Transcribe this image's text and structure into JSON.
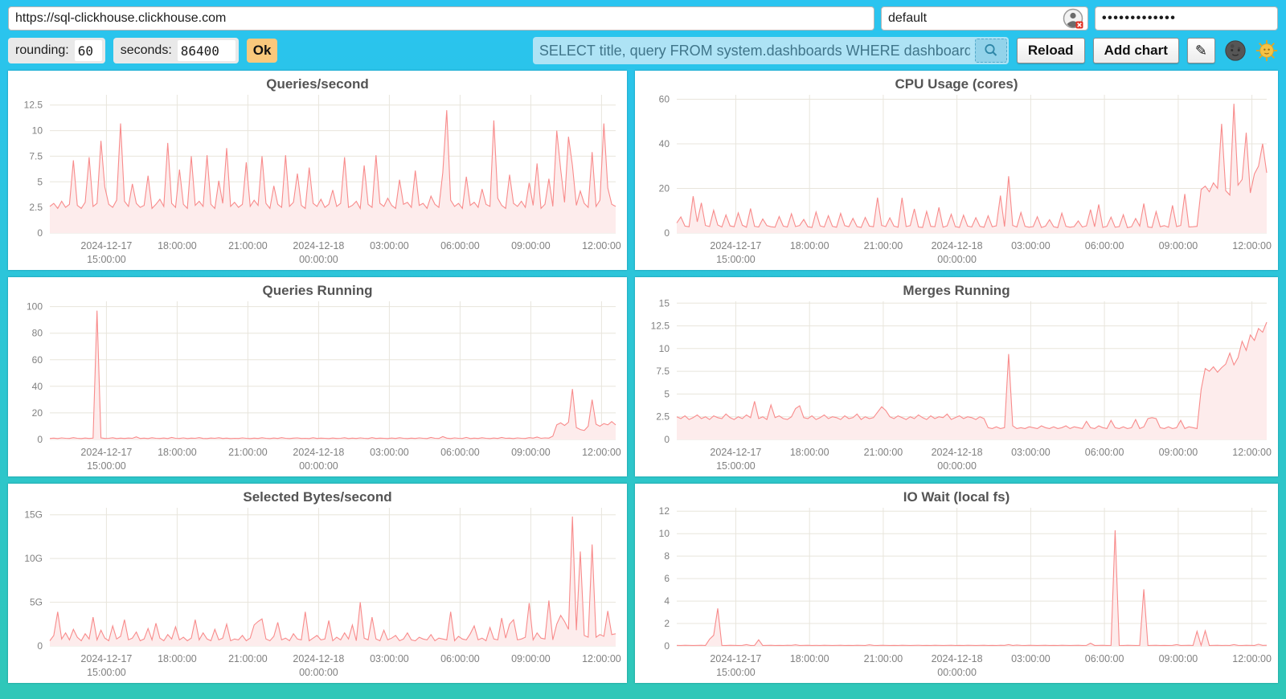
{
  "topbar": {
    "url_input": {
      "value": "https://sql-clickhouse.clickhouse.com"
    },
    "user_input": {
      "value": "default"
    },
    "password_input": {
      "value": "•••••••••••••"
    },
    "user_icon": "people-silhouette-circle-with-red-x-badge"
  },
  "controls": {
    "rounding_label": "rounding:",
    "rounding_value": "60",
    "seconds_label": "seconds:",
    "seconds_value": "86400",
    "ok_button": "Ok",
    "query_input": {
      "value": "SELECT title, query FROM system.dashboards WHERE dashboard = '"
    },
    "search_icon": "magnifier",
    "reload_button": "Reload",
    "add_chart_button": "Add chart",
    "edit_icon": "✎",
    "theme_dark_icon": "moon-face",
    "theme_light_icon": "sun-face"
  },
  "colors": {
    "background_top": "#2ac4f0",
    "background_bottom": "#2fc7b8",
    "accent_line": "#f88b8b",
    "accent_fill": "#fdecec",
    "grid": "#e8e5dc",
    "tick_text": "#808080",
    "title_text": "#545454",
    "ok_button_bg": "#f9c87c",
    "query_bg": "#aee3f5",
    "query_text": "#40758a"
  },
  "chart_data": [
    {
      "type": "line",
      "title": "Queries/second",
      "ylim": [
        0,
        13.5
      ],
      "y_ticks": [
        0,
        2.5,
        5,
        7.5,
        10,
        12.5
      ],
      "y_unit": "",
      "x_ticks": [
        {
          "frac": 0.1,
          "lines": [
            "2024-12-17",
            "15:00:00"
          ]
        },
        {
          "frac": 0.225,
          "lines": [
            "18:00:00"
          ]
        },
        {
          "frac": 0.35,
          "lines": [
            "21:00:00"
          ]
        },
        {
          "frac": 0.475,
          "lines": [
            "2024-12-18",
            "00:00:00"
          ]
        },
        {
          "frac": 0.6,
          "lines": [
            "03:00:00"
          ]
        },
        {
          "frac": 0.725,
          "lines": [
            "06:00:00"
          ]
        },
        {
          "frac": 0.85,
          "lines": [
            "09:00:00"
          ]
        },
        {
          "frac": 0.975,
          "lines": [
            "12:00:00"
          ]
        }
      ],
      "values": [
        2.6,
        2.9,
        2.4,
        3.1,
        2.5,
        2.8,
        7.1,
        2.7,
        2.4,
        3.0,
        7.4,
        2.6,
        2.9,
        9.0,
        4.5,
        2.8,
        2.5,
        3.2,
        10.7,
        3.1,
        2.6,
        4.8,
        2.9,
        2.5,
        2.7,
        5.6,
        2.4,
        2.8,
        3.3,
        2.6,
        8.8,
        2.9,
        2.5,
        6.2,
        2.8,
        2.4,
        7.5,
        2.7,
        3.1,
        2.6,
        7.6,
        2.8,
        2.4,
        5.1,
        2.9,
        8.3,
        2.6,
        3.0,
        2.5,
        2.8,
        6.9,
        2.6,
        3.2,
        2.7,
        7.5,
        2.9,
        2.4,
        4.6,
        2.8,
        2.5,
        7.6,
        2.6,
        3.0,
        5.8,
        2.7,
        2.4,
        6.4,
        2.9,
        2.6,
        3.3,
        2.5,
        2.8,
        4.2,
        2.6,
        2.9,
        7.4,
        2.5,
        2.7,
        3.1,
        2.4,
        6.6,
        2.8,
        2.5,
        7.6,
        2.9,
        2.6,
        3.4,
        2.7,
        2.4,
        5.2,
        2.8,
        3.0,
        2.5,
        6.1,
        2.7,
        2.9,
        2.4,
        3.6,
        2.8,
        2.5,
        5.9,
        12.0,
        3.2,
        2.6,
        2.9,
        2.4,
        5.5,
        2.7,
        3.0,
        2.5,
        4.3,
        2.8,
        2.6,
        11.0,
        3.4,
        2.7,
        2.4,
        5.7,
        2.9,
        2.6,
        3.1,
        2.5,
        4.9,
        2.7,
        6.8,
        2.4,
        2.8,
        5.3,
        2.6,
        10.0,
        6.2,
        3.0,
        9.4,
        6.6,
        2.7,
        4.1,
        2.9,
        2.5,
        7.9,
        2.6,
        3.2,
        10.7,
        4.4,
        2.8,
        2.6
      ]
    },
    {
      "type": "line",
      "title": "CPU Usage (cores)",
      "ylim": [
        0,
        62
      ],
      "y_ticks": [
        0,
        20,
        40,
        60
      ],
      "y_unit": "",
      "x_ticks": [
        {
          "frac": 0.1,
          "lines": [
            "2024-12-17",
            "15:00:00"
          ]
        },
        {
          "frac": 0.225,
          "lines": [
            "18:00:00"
          ]
        },
        {
          "frac": 0.35,
          "lines": [
            "21:00:00"
          ]
        },
        {
          "frac": 0.475,
          "lines": [
            "2024-12-18",
            "00:00:00"
          ]
        },
        {
          "frac": 0.6,
          "lines": [
            "03:00:00"
          ]
        },
        {
          "frac": 0.725,
          "lines": [
            "06:00:00"
          ]
        },
        {
          "frac": 0.85,
          "lines": [
            "09:00:00"
          ]
        },
        {
          "frac": 0.975,
          "lines": [
            "12:00:00"
          ]
        }
      ],
      "values": [
        4.5,
        7.2,
        3.1,
        2.8,
        16.5,
        5.0,
        13.5,
        3.4,
        2.9,
        10.2,
        3.6,
        2.7,
        8.1,
        3.2,
        2.8,
        9.0,
        3.5,
        2.6,
        11.0,
        3.0,
        2.7,
        6.3,
        3.3,
        2.8,
        2.6,
        7.4,
        3.1,
        2.7,
        8.6,
        2.9,
        3.4,
        6.1,
        2.8,
        2.5,
        9.4,
        3.2,
        2.7,
        7.8,
        3.0,
        2.6,
        8.8,
        3.3,
        2.8,
        6.6,
        2.9,
        2.5,
        7.0,
        3.1,
        2.8,
        15.9,
        3.4,
        2.9,
        6.8,
        3.1,
        2.6,
        15.8,
        2.9,
        3.3,
        10.8,
        2.7,
        2.5,
        9.7,
        3.0,
        2.8,
        11.5,
        2.6,
        3.2,
        8.4,
        2.9,
        2.5,
        8.0,
        3.1,
        2.7,
        6.9,
        3.0,
        2.6,
        7.7,
        2.8,
        3.2,
        16.8,
        2.9,
        25.5,
        3.4,
        2.7,
        9.2,
        3.0,
        2.6,
        2.9,
        7.3,
        2.5,
        3.1,
        6.0,
        2.8,
        2.4,
        8.9,
        3.0,
        2.6,
        2.9,
        5.4,
        2.7,
        3.2,
        10.5,
        2.8,
        12.8,
        2.5,
        3.0,
        7.1,
        2.6,
        2.9,
        8.2,
        2.4,
        2.8,
        6.5,
        3.1,
        13.2,
        2.7,
        2.5,
        9.6,
        2.8,
        3.3,
        2.6,
        12.4,
        2.9,
        3.4,
        17.5,
        2.7,
        2.8,
        3.0,
        19.5,
        21.0,
        18.5,
        22.5,
        20.0,
        49.0,
        19.0,
        17.0,
        58.0,
        21.5,
        24.0,
        45.0,
        18.0,
        26.5,
        30.0,
        40.0,
        27.0
      ]
    },
    {
      "type": "line",
      "title": "Queries Running",
      "ylim": [
        0,
        104
      ],
      "y_ticks": [
        0,
        20,
        40,
        60,
        80,
        100
      ],
      "y_unit": "",
      "x_ticks": [
        {
          "frac": 0.1,
          "lines": [
            "2024-12-17",
            "15:00:00"
          ]
        },
        {
          "frac": 0.225,
          "lines": [
            "18:00:00"
          ]
        },
        {
          "frac": 0.35,
          "lines": [
            "21:00:00"
          ]
        },
        {
          "frac": 0.475,
          "lines": [
            "2024-12-18",
            "00:00:00"
          ]
        },
        {
          "frac": 0.6,
          "lines": [
            "03:00:00"
          ]
        },
        {
          "frac": 0.725,
          "lines": [
            "06:00:00"
          ]
        },
        {
          "frac": 0.85,
          "lines": [
            "09:00:00"
          ]
        },
        {
          "frac": 0.975,
          "lines": [
            "12:00:00"
          ]
        }
      ],
      "values": [
        0.8,
        1.0,
        0.7,
        1.2,
        0.9,
        0.8,
        1.4,
        0.9,
        0.7,
        1.1,
        0.8,
        1.0,
        97.0,
        1.2,
        0.8,
        0.9,
        1.3,
        0.7,
        1.0,
        0.8,
        1.1,
        0.9,
        2.0,
        0.8,
        1.0,
        0.7,
        1.3,
        0.9,
        0.8,
        1.1,
        0.7,
        1.5,
        0.9,
        0.8,
        1.2,
        0.7,
        1.0,
        0.9,
        1.4,
        0.8,
        0.7,
        1.1,
        0.9,
        1.3,
        0.8,
        1.0,
        0.7,
        0.9,
        0.8,
        1.2,
        0.9,
        0.7,
        1.0,
        0.8,
        1.3,
        0.9,
        0.7,
        1.1,
        0.8,
        1.4,
        0.9,
        0.7,
        1.0,
        1.2,
        0.8,
        0.9,
        0.7,
        1.3,
        0.8,
        1.0,
        0.9,
        0.7,
        1.1,
        0.8,
        0.9,
        1.3,
        0.7,
        1.0,
        0.8,
        1.2,
        0.9,
        0.7,
        1.4,
        0.8,
        1.0,
        0.9,
        0.7,
        1.1,
        0.8,
        1.3,
        0.9,
        0.7,
        1.0,
        0.8,
        1.2,
        0.9,
        0.7,
        1.5,
        0.9,
        0.8,
        2.2,
        1.0,
        0.7,
        1.2,
        0.9,
        0.8,
        1.6,
        0.7,
        1.0,
        0.8,
        1.3,
        0.9,
        0.7,
        1.1,
        0.8,
        1.5,
        0.9,
        1.0,
        0.7,
        1.2,
        0.9,
        0.8,
        1.4,
        1.0,
        1.8,
        0.9,
        1.2,
        1.0,
        2.5,
        11.0,
        12.5,
        10.5,
        13.0,
        38.0,
        9.0,
        7.5,
        6.8,
        10.0,
        30.0,
        11.5,
        10.0,
        12.0,
        11.0,
        13.5,
        11.0
      ]
    },
    {
      "type": "line",
      "title": "Merges Running",
      "ylim": [
        0,
        15.2
      ],
      "y_ticks": [
        0,
        2.5,
        5,
        7.5,
        10,
        12.5,
        15
      ],
      "y_unit": "",
      "x_ticks": [
        {
          "frac": 0.1,
          "lines": [
            "2024-12-17",
            "15:00:00"
          ]
        },
        {
          "frac": 0.225,
          "lines": [
            "18:00:00"
          ]
        },
        {
          "frac": 0.35,
          "lines": [
            "21:00:00"
          ]
        },
        {
          "frac": 0.475,
          "lines": [
            "2024-12-18",
            "00:00:00"
          ]
        },
        {
          "frac": 0.6,
          "lines": [
            "03:00:00"
          ]
        },
        {
          "frac": 0.725,
          "lines": [
            "06:00:00"
          ]
        },
        {
          "frac": 0.85,
          "lines": [
            "09:00:00"
          ]
        },
        {
          "frac": 0.975,
          "lines": [
            "12:00:00"
          ]
        }
      ],
      "values": [
        2.5,
        2.3,
        2.6,
        2.2,
        2.4,
        2.7,
        2.3,
        2.5,
        2.2,
        2.6,
        2.4,
        2.3,
        2.8,
        2.4,
        2.2,
        2.5,
        2.3,
        2.7,
        2.4,
        4.2,
        2.3,
        2.5,
        2.2,
        3.8,
        2.4,
        2.6,
        2.3,
        2.2,
        2.5,
        3.4,
        3.7,
        2.4,
        2.3,
        2.6,
        2.2,
        2.4,
        2.7,
        2.3,
        2.5,
        2.4,
        2.2,
        2.6,
        2.3,
        2.4,
        2.8,
        2.2,
        2.5,
        2.3,
        2.4,
        3.0,
        3.6,
        3.2,
        2.5,
        2.3,
        2.6,
        2.4,
        2.2,
        2.5,
        2.3,
        2.7,
        2.4,
        2.2,
        2.6,
        2.3,
        2.5,
        2.4,
        2.8,
        2.2,
        2.4,
        2.6,
        2.3,
        2.5,
        2.4,
        2.2,
        2.5,
        2.3,
        1.3,
        1.2,
        1.4,
        1.2,
        1.3,
        9.4,
        1.5,
        1.2,
        1.3,
        1.2,
        1.4,
        1.3,
        1.2,
        1.5,
        1.3,
        1.2,
        1.4,
        1.2,
        1.3,
        1.5,
        1.2,
        1.4,
        1.3,
        1.2,
        2.0,
        1.3,
        1.2,
        1.5,
        1.3,
        1.2,
        2.1,
        1.3,
        1.2,
        1.4,
        1.2,
        1.3,
        2.2,
        1.2,
        1.4,
        2.3,
        2.4,
        2.3,
        1.3,
        1.2,
        1.4,
        1.2,
        1.3,
        2.1,
        1.2,
        1.4,
        1.3,
        1.2,
        5.5,
        7.8,
        7.5,
        8.0,
        7.4,
        7.9,
        8.3,
        9.5,
        8.2,
        9.0,
        10.8,
        9.8,
        11.5,
        10.9,
        12.2,
        11.8,
        12.9
      ]
    },
    {
      "type": "line",
      "title": "Selected Bytes/second",
      "ylim": [
        0,
        15.8
      ],
      "y_ticks": [
        0,
        5,
        10,
        15
      ],
      "y_unit": "G",
      "x_ticks": [
        {
          "frac": 0.1,
          "lines": [
            "2024-12-17",
            "15:00:00"
          ]
        },
        {
          "frac": 0.225,
          "lines": [
            "18:00:00"
          ]
        },
        {
          "frac": 0.35,
          "lines": [
            "21:00:00"
          ]
        },
        {
          "frac": 0.475,
          "lines": [
            "2024-12-18",
            "00:00:00"
          ]
        },
        {
          "frac": 0.6,
          "lines": [
            "03:00:00"
          ]
        },
        {
          "frac": 0.725,
          "lines": [
            "06:00:00"
          ]
        },
        {
          "frac": 0.85,
          "lines": [
            "09:00:00"
          ]
        },
        {
          "frac": 0.975,
          "lines": [
            "12:00:00"
          ]
        }
      ],
      "values": [
        0.6,
        1.2,
        3.9,
        0.8,
        1.5,
        0.7,
        1.9,
        1.0,
        0.6,
        1.4,
        0.8,
        3.3,
        0.7,
        1.8,
        0.9,
        0.6,
        2.3,
        0.8,
        1.1,
        3.0,
        0.7,
        0.9,
        1.6,
        0.6,
        0.8,
        2.0,
        0.7,
        2.6,
        0.9,
        0.6,
        1.3,
        0.8,
        2.2,
        0.7,
        1.0,
        0.6,
        0.9,
        3.0,
        0.7,
        1.5,
        0.8,
        0.6,
        1.9,
        0.7,
        0.9,
        2.5,
        0.6,
        0.8,
        0.7,
        1.2,
        0.6,
        0.9,
        2.4,
        2.8,
        3.1,
        0.8,
        0.6,
        1.1,
        2.7,
        0.7,
        0.9,
        0.6,
        1.4,
        0.8,
        0.7,
        3.9,
        0.6,
        0.9,
        1.2,
        0.7,
        0.8,
        2.9,
        0.6,
        1.0,
        0.7,
        1.5,
        0.8,
        2.4,
        0.6,
        5.0,
        0.9,
        0.7,
        3.3,
        0.8,
        0.6,
        1.8,
        0.7,
        0.9,
        1.2,
        0.6,
        0.8,
        1.5,
        0.7,
        0.6,
        1.0,
        0.8,
        0.7,
        1.3,
        0.6,
        0.9,
        0.8,
        0.7,
        3.9,
        0.6,
        1.1,
        0.8,
        0.7,
        1.4,
        2.3,
        0.7,
        0.9,
        0.6,
        2.1,
        0.8,
        0.7,
        3.2,
        0.9,
        2.5,
        3.0,
        0.7,
        0.8,
        1.0,
        4.9,
        0.7,
        1.5,
        0.9,
        0.8,
        5.2,
        0.7,
        2.5,
        3.5,
        2.8,
        1.9,
        14.8,
        1.8,
        10.8,
        1.2,
        1.0,
        11.6,
        1.0,
        1.3,
        1.1,
        4.0,
        1.3,
        1.4
      ]
    },
    {
      "type": "line",
      "title": "IO Wait (local fs)",
      "ylim": [
        0,
        12.3
      ],
      "y_ticks": [
        0,
        2,
        4,
        6,
        8,
        10,
        12
      ],
      "y_unit": "",
      "x_ticks": [
        {
          "frac": 0.1,
          "lines": [
            "2024-12-17",
            "15:00:00"
          ]
        },
        {
          "frac": 0.225,
          "lines": [
            "18:00:00"
          ]
        },
        {
          "frac": 0.35,
          "lines": [
            "21:00:00"
          ]
        },
        {
          "frac": 0.475,
          "lines": [
            "2024-12-18",
            "00:00:00"
          ]
        },
        {
          "frac": 0.6,
          "lines": [
            "03:00:00"
          ]
        },
        {
          "frac": 0.725,
          "lines": [
            "06:00:00"
          ]
        },
        {
          "frac": 0.85,
          "lines": [
            "09:00:00"
          ]
        },
        {
          "frac": 0.975,
          "lines": [
            "12:00:00"
          ]
        }
      ],
      "values": [
        0.05,
        0.04,
        0.06,
        0.05,
        0.04,
        0.05,
        0.06,
        0.04,
        0.6,
        0.95,
        3.35,
        0.05,
        0.04,
        0.06,
        0.05,
        0.04,
        0.05,
        0.12,
        0.04,
        0.05,
        0.55,
        0.04,
        0.05,
        0.06,
        0.04,
        0.05,
        0.04,
        0.06,
        0.05,
        0.1,
        0.04,
        0.05,
        0.06,
        0.04,
        0.05,
        0.04,
        0.06,
        0.05,
        0.04,
        0.05,
        0.06,
        0.04,
        0.05,
        0.04,
        0.06,
        0.05,
        0.04,
        0.1,
        0.05,
        0.04,
        0.06,
        0.05,
        0.04,
        0.05,
        0.04,
        0.06,
        0.05,
        0.04,
        0.05,
        0.06,
        0.04,
        0.05,
        0.04,
        0.06,
        0.05,
        0.04,
        0.05,
        0.06,
        0.04,
        0.05,
        0.04,
        0.06,
        0.05,
        0.04,
        0.05,
        0.06,
        0.04,
        0.05,
        0.04,
        0.06,
        0.05,
        0.12,
        0.04,
        0.08,
        0.05,
        0.04,
        0.06,
        0.05,
        0.04,
        0.05,
        0.06,
        0.04,
        0.05,
        0.04,
        0.06,
        0.05,
        0.04,
        0.05,
        0.06,
        0.04,
        0.05,
        0.25,
        0.04,
        0.05,
        0.06,
        0.04,
        0.05,
        10.3,
        0.05,
        0.04,
        0.06,
        0.05,
        0.04,
        0.05,
        5.05,
        0.04,
        0.05,
        0.06,
        0.04,
        0.05,
        0.04,
        0.05,
        0.12,
        0.04,
        0.05,
        0.06,
        0.04,
        1.3,
        0.05,
        1.35,
        0.04,
        0.05,
        0.06,
        0.04,
        0.05,
        0.04,
        0.12,
        0.05,
        0.04,
        0.06,
        0.05,
        0.04,
        0.15,
        0.05,
        0.06
      ]
    }
  ]
}
